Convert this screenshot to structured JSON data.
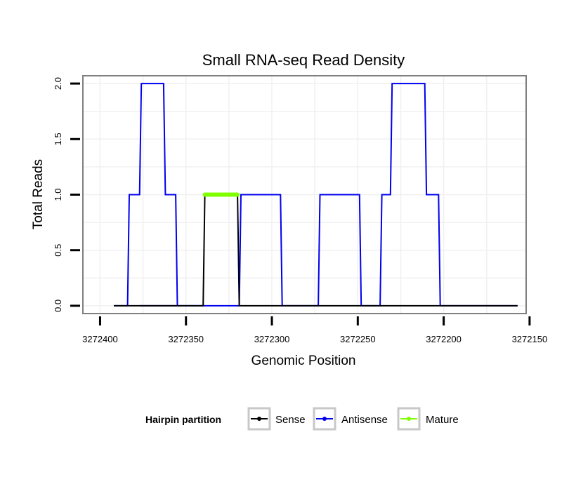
{
  "chart_data": {
    "type": "line",
    "title": "Small RNA-seq Read Density",
    "xlabel": "Genomic Position",
    "ylabel": "Total Reads",
    "xlim": [
      3272410,
      3272152
    ],
    "ylim": [
      -0.07,
      2.07
    ],
    "x_reversed": true,
    "x_ticks": [
      3272400,
      3272350,
      3272300,
      3272250,
      3272200,
      3272150
    ],
    "x_tick_labels": [
      "3272400",
      "3272350",
      "3272300",
      "3272250",
      "3272200",
      "3272150"
    ],
    "y_ticks": [
      0,
      0.5,
      1,
      1.5,
      2
    ],
    "y_tick_labels": [
      "0.0",
      "0.5",
      "1.0",
      "1.5",
      "2.0"
    ],
    "grid": true,
    "legend": {
      "title": "Hairpin partition",
      "position": "bottom",
      "entries": [
        {
          "label": "Sense",
          "color": "#000000"
        },
        {
          "label": "Antisense",
          "color": "#0000ee"
        },
        {
          "label": "Mature",
          "color": "#7fff00"
        }
      ]
    },
    "series": [
      {
        "name": "Antisense",
        "color": "#0000ee",
        "x": [
          3272392,
          3272384,
          3272383,
          3272377,
          3272376,
          3272363,
          3272362,
          3272356,
          3272355,
          3272377,
          3272324,
          3272319,
          3272318,
          3272295,
          3272294,
          3272273,
          3272272,
          3272249,
          3272248,
          3272237,
          3272236,
          3272231,
          3272230,
          3272211,
          3272210,
          3272203,
          3272202,
          3272157
        ],
        "y": [
          0,
          0,
          1,
          1,
          2,
          2,
          1,
          1,
          0,
          0,
          0,
          0,
          1,
          1,
          0,
          0,
          1,
          1,
          0,
          0,
          1,
          1,
          2,
          2,
          1,
          1,
          0,
          0
        ]
      },
      {
        "name": "Sense",
        "color": "#000000",
        "x": [
          3272392,
          3272340,
          3272339,
          3272320,
          3272319,
          3272157
        ],
        "y": [
          0,
          0,
          1,
          1,
          0,
          0
        ]
      },
      {
        "name": "Mature",
        "color": "#7fff00",
        "x": [
          3272339,
          3272320
        ],
        "y": [
          1,
          1
        ]
      }
    ]
  }
}
